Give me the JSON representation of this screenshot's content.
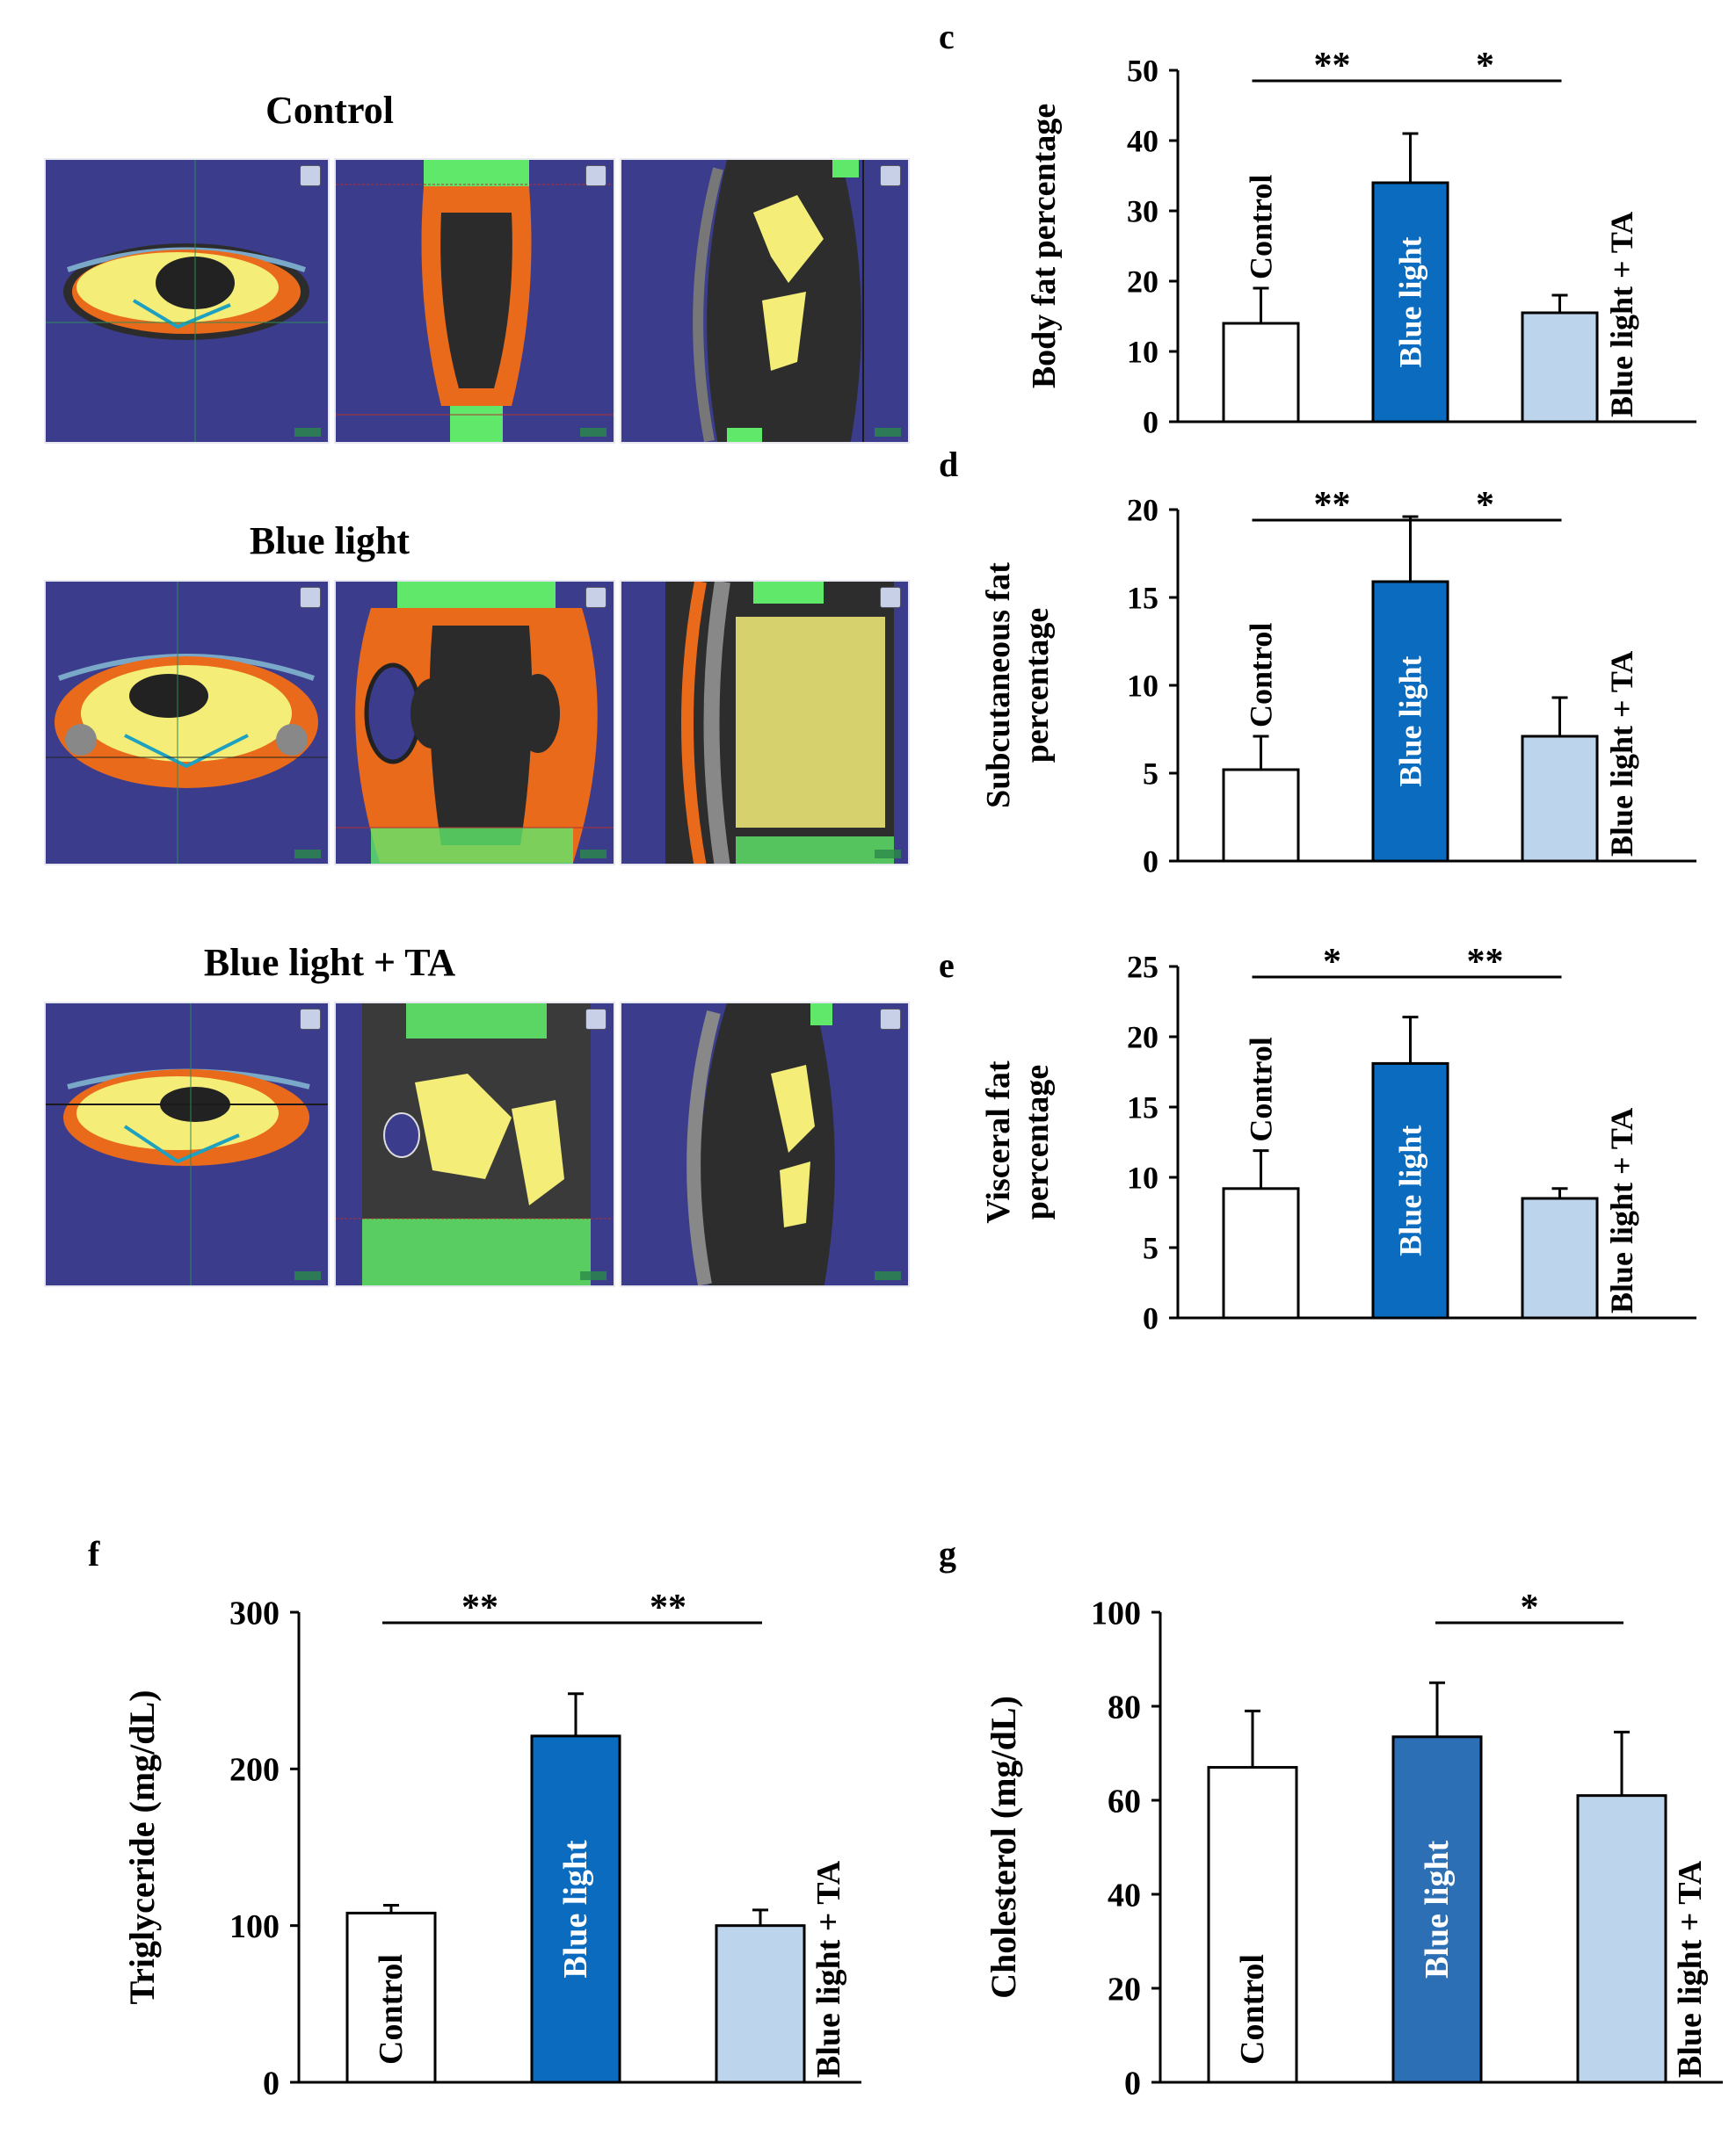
{
  "scans": {
    "rows": [
      {
        "label": "Control"
      },
      {
        "label": "Blue light"
      },
      {
        "label": "Blue light + TA"
      }
    ]
  },
  "chart_data": [
    {
      "id": "c",
      "panel_letter": "c",
      "type": "bar",
      "categories": [
        "Control",
        "Blue light",
        "Blue light + TA"
      ],
      "values": [
        14,
        34,
        15.5
      ],
      "errors": [
        5,
        7,
        2.5
      ],
      "colors": [
        "#ffffff",
        "#0a6bbf",
        "#bcd5ec"
      ],
      "ylabel": "Body fat percentage",
      "ylim": [
        0,
        50
      ],
      "yticks": [
        0,
        10,
        20,
        30,
        40,
        50
      ],
      "significance": [
        {
          "from": 0,
          "to": 1,
          "label": "**"
        },
        {
          "from": 1,
          "to": 2,
          "label": "*"
        }
      ]
    },
    {
      "id": "d",
      "panel_letter": "d",
      "type": "bar",
      "categories": [
        "Control",
        "Blue light",
        "Blue light + TA"
      ],
      "values": [
        5.2,
        15.9,
        7.1
      ],
      "errors": [
        1.9,
        3.7,
        2.2
      ],
      "colors": [
        "#ffffff",
        "#0a6bbf",
        "#bcd5ec"
      ],
      "ylabel": "Subcutaneous fat percentage",
      "ylabel_lines": [
        "Subcutaneous fat",
        "percentage"
      ],
      "ylim": [
        0,
        20
      ],
      "yticks": [
        0,
        5,
        10,
        15,
        20
      ],
      "significance": [
        {
          "from": 0,
          "to": 1,
          "label": "**"
        },
        {
          "from": 1,
          "to": 2,
          "label": "*"
        }
      ]
    },
    {
      "id": "e",
      "panel_letter": "e",
      "type": "bar",
      "categories": [
        "Control",
        "Blue light",
        "Blue light + TA"
      ],
      "values": [
        9.2,
        18.1,
        8.5
      ],
      "errors": [
        2.7,
        3.3,
        0.7
      ],
      "colors": [
        "#ffffff",
        "#0a6bbf",
        "#bcd5ec"
      ],
      "ylabel": "Visceral fat percentage",
      "ylabel_lines": [
        "Visceral fat",
        "percentage"
      ],
      "ylim": [
        0,
        25
      ],
      "yticks": [
        0,
        5,
        10,
        15,
        20,
        25
      ],
      "significance": [
        {
          "from": 0,
          "to": 1,
          "label": "*"
        },
        {
          "from": 1,
          "to": 2,
          "label": "**"
        }
      ]
    },
    {
      "id": "f",
      "panel_letter": "f",
      "type": "bar",
      "categories": [
        "Control",
        "Blue light",
        "Blue light + TA"
      ],
      "values": [
        108,
        221,
        100
      ],
      "errors": [
        5,
        27,
        10
      ],
      "colors": [
        "#ffffff",
        "#0a6bbf",
        "#bcd5ec"
      ],
      "ylabel": "Triglyceride (mg/dL)",
      "ylim": [
        0,
        300
      ],
      "yticks": [
        0,
        100,
        200,
        300
      ],
      "significance": [
        {
          "from": 0,
          "to": 1,
          "label": "**"
        },
        {
          "from": 1,
          "to": 2,
          "label": "**"
        }
      ]
    },
    {
      "id": "g",
      "panel_letter": "g",
      "type": "bar",
      "categories": [
        "Control",
        "Blue light",
        "Blue light + TA"
      ],
      "values": [
        67,
        73.5,
        61
      ],
      "errors": [
        12,
        11.5,
        13.5
      ],
      "colors": [
        "#ffffff",
        "#2d6fb5",
        "#bcd5ec"
      ],
      "ylabel": "Cholesterol (mg/dL)",
      "ylim": [
        0,
        100
      ],
      "yticks": [
        0,
        20,
        40,
        60,
        80,
        100
      ],
      "significance": [
        {
          "from": 1,
          "to": 2,
          "label": "*"
        }
      ]
    }
  ]
}
